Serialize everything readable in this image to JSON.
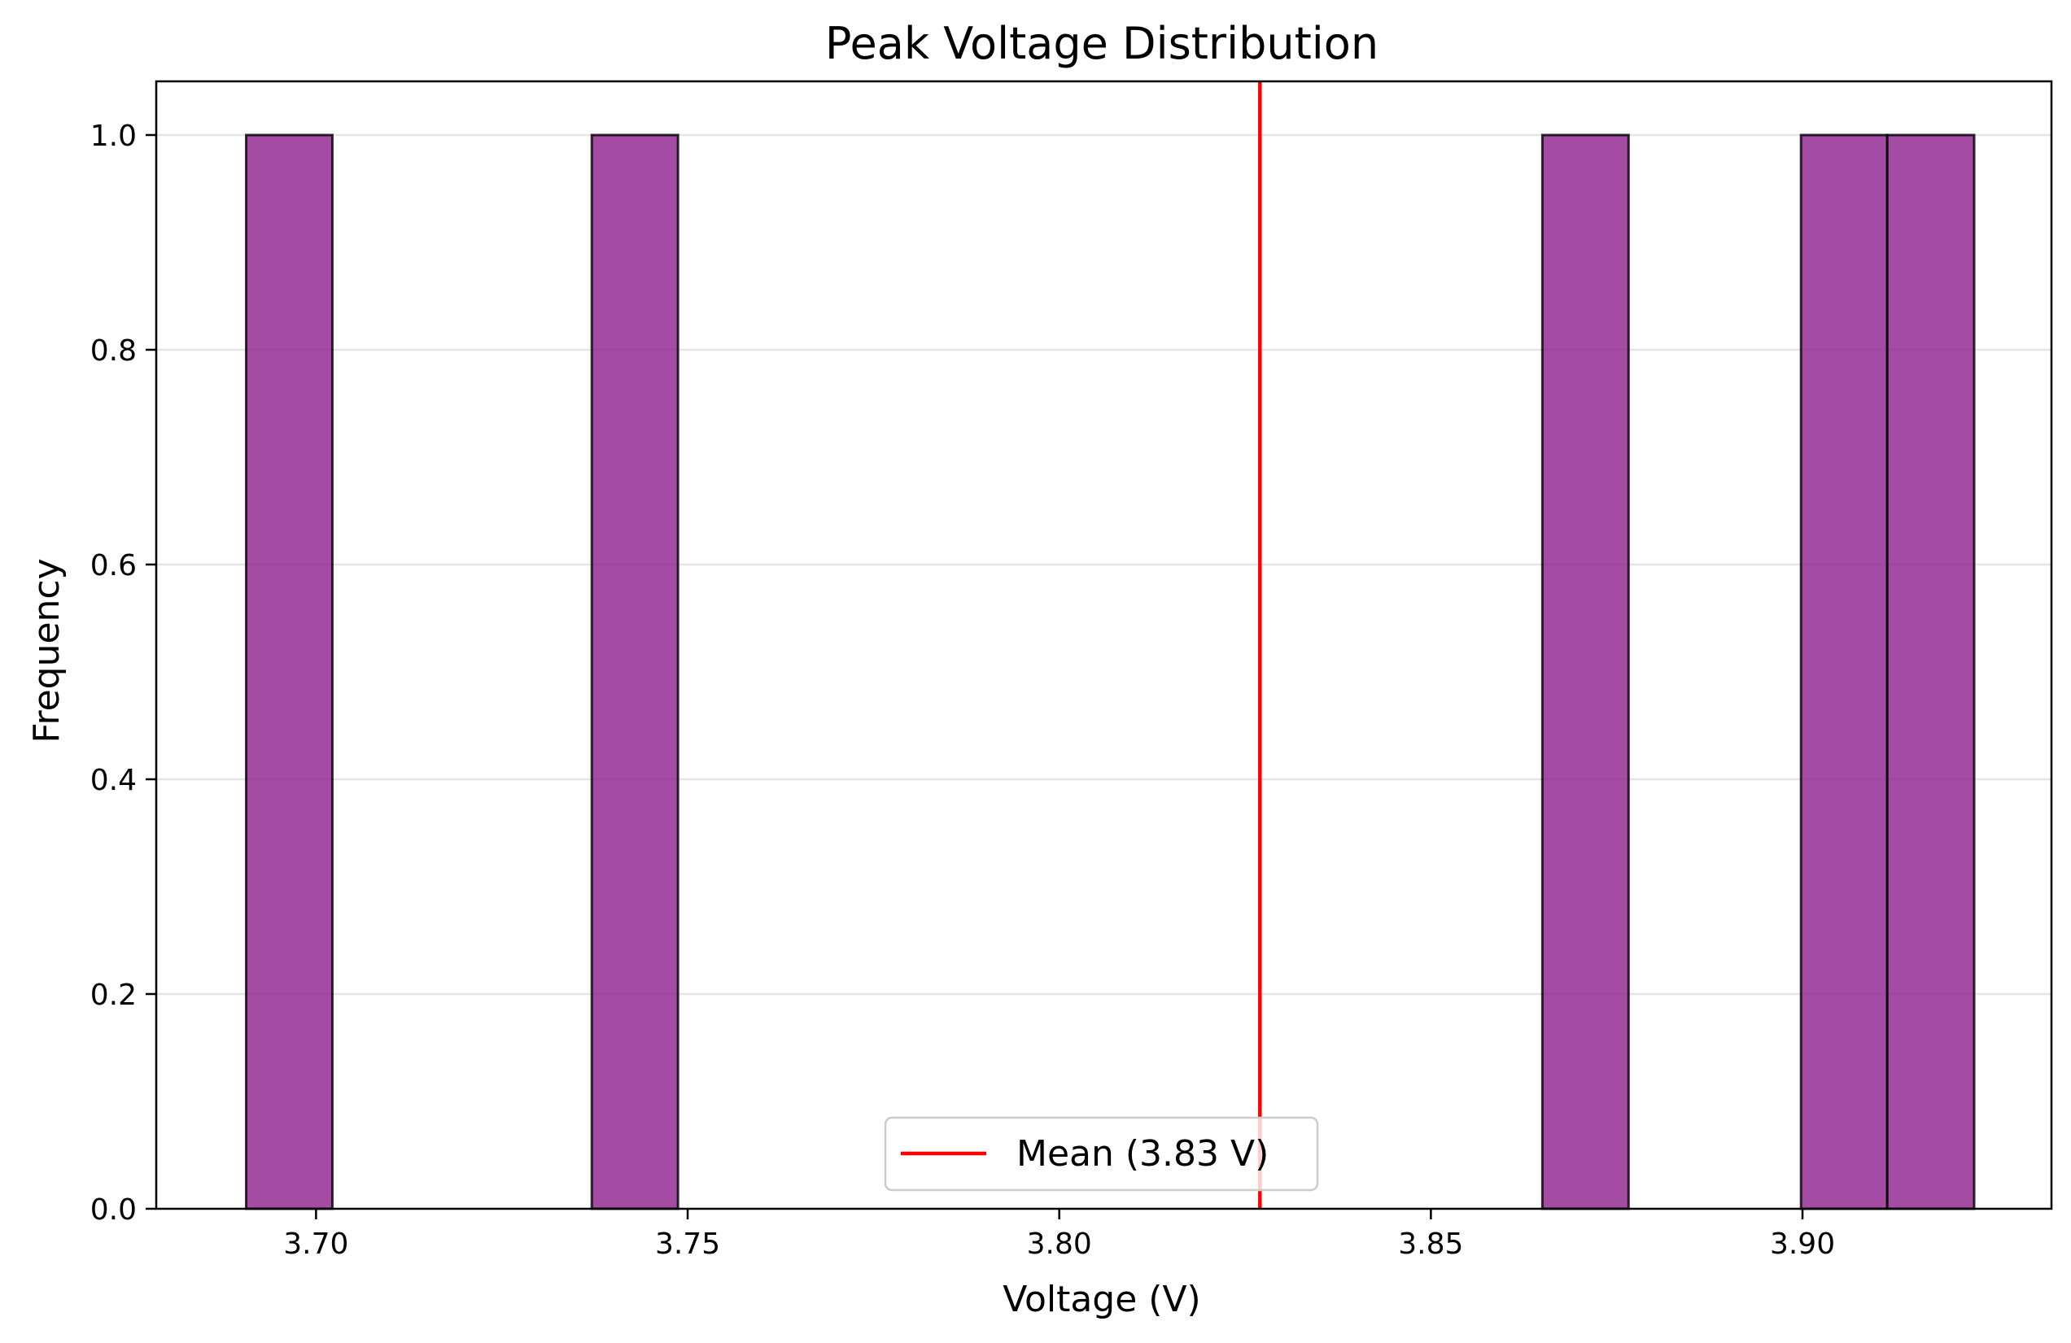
{
  "chart_data": {
    "type": "bar",
    "subtype": "histogram",
    "title": "Peak Voltage Distribution",
    "xlabel": "Voltage (V)",
    "ylabel": "Frequency",
    "xlim": [
      3.6785,
      3.9335
    ],
    "ylim": [
      0,
      1.05
    ],
    "x_ticks": [
      3.7,
      3.75,
      3.8,
      3.85,
      3.9
    ],
    "x_tick_labels": [
      "3.70",
      "3.75",
      "3.80",
      "3.85",
      "3.90"
    ],
    "y_ticks": [
      0.0,
      0.2,
      0.4,
      0.6,
      0.8,
      1.0
    ],
    "y_tick_labels": [
      "0.0",
      "0.2",
      "0.4",
      "0.6",
      "0.8",
      "1.0"
    ],
    "grid": "y",
    "bins": [
      {
        "x0": 3.6906,
        "x1": 3.7022,
        "count": 1
      },
      {
        "x0": 3.7371,
        "x1": 3.7487,
        "count": 1
      },
      {
        "x0": 3.865,
        "x1": 3.8766,
        "count": 1
      },
      {
        "x0": 3.8998,
        "x1": 3.9114,
        "count": 1
      },
      {
        "x0": 3.9114,
        "x1": 3.9231,
        "count": 1
      }
    ],
    "mean_line": {
      "x": 3.827,
      "label": "Mean (3.83 V)",
      "color": "#ff0000"
    },
    "bar_color": "#8b1a89",
    "bar_edge_color": "#000000",
    "legend": {
      "position": "bottom-center",
      "entries": [
        "Mean (3.83 V)"
      ]
    }
  }
}
